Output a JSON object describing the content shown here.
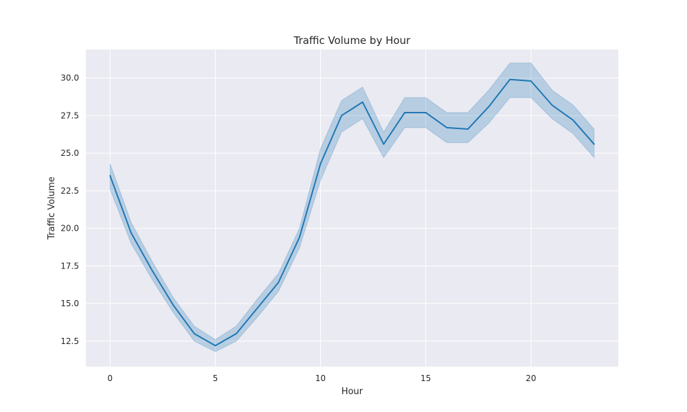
{
  "chart_data": {
    "type": "line",
    "title": "Traffic Volume by Hour",
    "xlabel": "Hour",
    "ylabel": "Traffic Volume",
    "xlim": [
      -1.15,
      24.15
    ],
    "ylim": [
      10.8,
      31.9
    ],
    "xticks": [
      0,
      5,
      10,
      15,
      20
    ],
    "xtick_labels": [
      "0",
      "5",
      "10",
      "15",
      "20"
    ],
    "yticks": [
      12.5,
      15.0,
      17.5,
      20.0,
      22.5,
      25.0,
      27.5,
      30.0
    ],
    "ytick_labels": [
      "12.5",
      "15.0",
      "17.5",
      "20.0",
      "22.5",
      "25.0",
      "27.5",
      "30.0"
    ],
    "grid": true,
    "x": [
      0,
      1,
      2,
      3,
      4,
      5,
      6,
      7,
      8,
      9,
      10,
      11,
      12,
      13,
      14,
      15,
      16,
      17,
      18,
      19,
      20,
      21,
      22,
      23
    ],
    "series": [
      {
        "values": [
          23.5,
          19.7,
          17.2,
          14.9,
          13.0,
          12.2,
          13.0,
          14.7,
          16.4,
          19.4,
          24.3,
          27.5,
          28.4,
          25.6,
          27.7,
          27.7,
          26.7,
          26.6,
          28.1,
          29.9,
          29.8,
          28.2,
          27.2,
          25.6
        ],
        "ci_lower": [
          22.6,
          19.0,
          16.6,
          14.4,
          12.5,
          11.8,
          12.5,
          14.1,
          15.8,
          18.7,
          23.2,
          26.4,
          27.3,
          24.7,
          26.7,
          26.7,
          25.7,
          25.7,
          27.0,
          28.7,
          28.7,
          27.3,
          26.3,
          24.7
        ],
        "ci_upper": [
          24.3,
          20.4,
          17.8,
          15.4,
          13.5,
          12.6,
          13.5,
          15.3,
          17.0,
          20.0,
          25.3,
          28.5,
          29.4,
          26.4,
          28.7,
          28.7,
          27.7,
          27.7,
          29.2,
          31.0,
          31.0,
          29.2,
          28.2,
          26.6
        ],
        "color": "#1f77b4",
        "band_color": "#1f77b4"
      }
    ],
    "colors": {
      "plot_background": "#eaeaf2",
      "grid": "#ffffff",
      "text": "#262626"
    }
  }
}
